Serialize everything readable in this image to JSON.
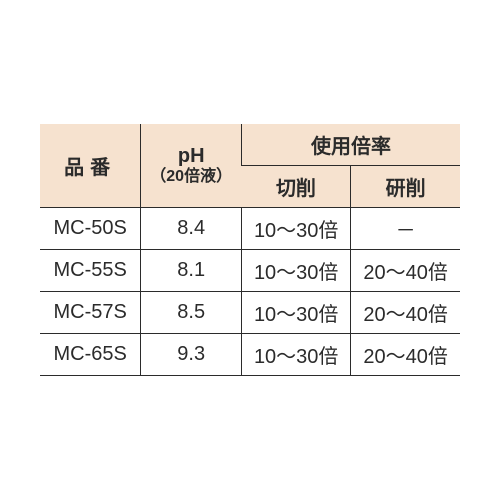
{
  "table": {
    "header": {
      "part_no": "品番",
      "ph_label": "pH",
      "ph_sub": "（20倍液）",
      "usage_ratio": "使用倍率",
      "cutting": "切削",
      "grinding": "研削"
    },
    "rows": [
      {
        "part": "MC-50S",
        "ph": "8.4",
        "cut": "10～30倍",
        "grind": "－"
      },
      {
        "part": "MC-55S",
        "ph": "8.1",
        "cut": "10～30倍",
        "grind": "20～40倍"
      },
      {
        "part": "MC-57S",
        "ph": "8.5",
        "cut": "10～30倍",
        "grind": "20～40倍"
      },
      {
        "part": "MC-65S",
        "ph": "9.3",
        "cut": "10～30倍",
        "grind": "20～40倍"
      }
    ],
    "style": {
      "header_bg": "#f6e2cf",
      "border_color": "#2b2b2b",
      "text_color": "#2b2b2b",
      "font_size_pt": 15,
      "cell_align": "center"
    }
  }
}
